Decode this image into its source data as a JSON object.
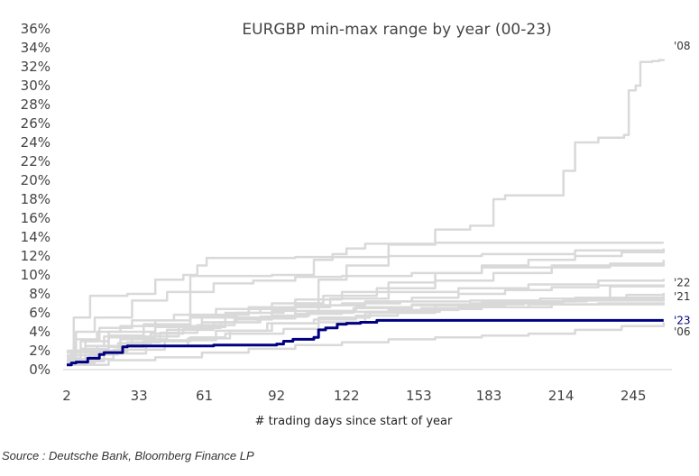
{
  "chart_data": {
    "type": "line",
    "title": "EURGBP min-max range by year (00-23)",
    "xlabel": "# trading days since start of year",
    "ylabel": "",
    "xlim": [
      2,
      260
    ],
    "ylim": [
      0,
      36
    ],
    "x_ticks": [
      2,
      33,
      61,
      92,
      122,
      153,
      183,
      214,
      245
    ],
    "y_ticks": [
      "0%",
      "2%",
      "4%",
      "6%",
      "8%",
      "10%",
      "12%",
      "14%",
      "16%",
      "18%",
      "20%",
      "22%",
      "24%",
      "26%",
      "28%",
      "30%",
      "32%",
      "34%",
      "36%"
    ],
    "y_tick_values": [
      0,
      2,
      4,
      6,
      8,
      10,
      12,
      14,
      16,
      18,
      20,
      22,
      24,
      26,
      28,
      30,
      32,
      34,
      36
    ],
    "colors": {
      "background_series": "#d9d9d9",
      "highlight": "#000080"
    },
    "series": [
      {
        "name": "'08",
        "label_y": 34.2,
        "highlight": false,
        "x": [
          2,
          4,
          10,
          20,
          40,
          60,
          75,
          100,
          110,
          122,
          140,
          155,
          160,
          175,
          185,
          190,
          195,
          205,
          215,
          220,
          230,
          238,
          241,
          243,
          246,
          248,
          253,
          256,
          258
        ],
        "y": [
          1.0,
          2.0,
          3.0,
          4.0,
          4.5,
          5.0,
          5.5,
          7.0,
          9.5,
          11.0,
          13.2,
          13.2,
          14.8,
          15.2,
          18.0,
          18.4,
          18.4,
          18.4,
          21.0,
          24.0,
          24.5,
          24.5,
          24.8,
          29.5,
          30.0,
          32.5,
          32.6,
          32.7,
          32.8
        ]
      },
      {
        "name": "'22",
        "label_y": 9.2,
        "highlight": false,
        "x": [
          2,
          10,
          20,
          35,
          55,
          70,
          95,
          110,
          130,
          160,
          190,
          215,
          235,
          258
        ],
        "y": [
          1.0,
          1.8,
          2.4,
          3.0,
          3.4,
          3.8,
          4.3,
          5.0,
          6.0,
          6.8,
          7.2,
          7.5,
          8.8,
          9.0
        ]
      },
      {
        "name": "'21",
        "label_y": 7.7,
        "highlight": false,
        "x": [
          2,
          8,
          15,
          25,
          40,
          55,
          70,
          85,
          100,
          120,
          145,
          175,
          205,
          240,
          258
        ],
        "y": [
          1.2,
          3.0,
          4.0,
          4.6,
          5.2,
          5.5,
          6.0,
          6.4,
          6.8,
          7.0,
          7.2,
          7.3,
          7.5,
          7.6,
          7.6
        ]
      },
      {
        "name": "'23",
        "label_y": 5.2,
        "highlight": true,
        "x": [
          2,
          4,
          6,
          9,
          11,
          13,
          16,
          18,
          20,
          24,
          26,
          28,
          40,
          58,
          65,
          72,
          88,
          92,
          95,
          99,
          102,
          108,
          110,
          113,
          118,
          122,
          128,
          135,
          160,
          200,
          258
        ],
        "y": [
          0.5,
          0.7,
          0.8,
          0.8,
          1.2,
          1.2,
          1.6,
          1.8,
          1.8,
          1.8,
          2.4,
          2.5,
          2.5,
          2.5,
          2.6,
          2.6,
          2.6,
          2.7,
          3.0,
          3.2,
          3.2,
          3.4,
          4.2,
          4.4,
          4.8,
          4.9,
          5.0,
          5.2,
          5.2,
          5.2,
          5.2
        ]
      },
      {
        "name": "'06",
        "label_y": 4.0,
        "highlight": false,
        "x": [
          2,
          20,
          40,
          60,
          80,
          100,
          120,
          140,
          160,
          180,
          200,
          220,
          240,
          258
        ],
        "y": [
          0.5,
          1.0,
          1.3,
          1.8,
          2.2,
          2.6,
          2.9,
          3.2,
          3.4,
          3.6,
          3.8,
          4.2,
          4.6,
          5.0
        ]
      },
      {
        "name": "",
        "highlight": false,
        "x": [
          2,
          6,
          14,
          30,
          45,
          65,
          82,
          100,
          120,
          150,
          180,
          210,
          258
        ],
        "y": [
          1.0,
          4.0,
          5.5,
          7.3,
          8.2,
          9.1,
          9.4,
          9.8,
          9.9,
          10.2,
          10.8,
          11.0,
          11.4
        ]
      },
      {
        "name": "",
        "highlight": false,
        "x": [
          2,
          10,
          18,
          40,
          55,
          90,
          108,
          116,
          122,
          130,
          160,
          258
        ],
        "y": [
          2.0,
          2.5,
          3.5,
          4.6,
          9.9,
          10.0,
          11.6,
          12.2,
          12.8,
          13.3,
          13.4,
          13.4
        ]
      },
      {
        "name": "",
        "highlight": false,
        "x": [
          2,
          5,
          12,
          20,
          28,
          40,
          52,
          58,
          62,
          100,
          140,
          180,
          220,
          258
        ],
        "y": [
          1.2,
          5.5,
          7.8,
          7.8,
          8.0,
          9.5,
          10.0,
          11.0,
          11.8,
          11.9,
          12.0,
          12.2,
          12.6,
          12.8
        ]
      },
      {
        "name": "",
        "highlight": false,
        "x": [
          2,
          15,
          30,
          50,
          70,
          90,
          110,
          130,
          150,
          170,
          190,
          210,
          230,
          258
        ],
        "y": [
          1.5,
          2.5,
          3.5,
          4.5,
          5.5,
          6.2,
          6.8,
          7.2,
          7.6,
          8.0,
          8.4,
          8.7,
          8.9,
          9.0
        ]
      },
      {
        "name": "",
        "highlight": false,
        "x": [
          2,
          10,
          25,
          45,
          65,
          85,
          105,
          125,
          150,
          175,
          200,
          225,
          258
        ],
        "y": [
          0.8,
          2.0,
          3.2,
          4.2,
          5.0,
          5.6,
          6.0,
          6.5,
          6.8,
          7.0,
          7.2,
          7.5,
          7.8
        ]
      },
      {
        "name": "",
        "highlight": false,
        "x": [
          2,
          8,
          20,
          35,
          55,
          75,
          95,
          115,
          140,
          170,
          200,
          230,
          258
        ],
        "y": [
          1.0,
          2.2,
          3.6,
          4.8,
          5.6,
          6.0,
          6.6,
          7.5,
          8.2,
          8.6,
          9.0,
          9.4,
          9.6
        ]
      },
      {
        "name": "",
        "highlight": false,
        "x": [
          2,
          12,
          24,
          38,
          52,
          68,
          84,
          100,
          120,
          140,
          170,
          210,
          258
        ],
        "y": [
          0.6,
          1.6,
          2.8,
          3.8,
          4.4,
          5.0,
          5.4,
          5.9,
          6.1,
          6.3,
          6.6,
          6.9,
          7.1
        ]
      },
      {
        "name": "",
        "highlight": false,
        "x": [
          2,
          6,
          16,
          30,
          48,
          66,
          90,
          112,
          135,
          160,
          185,
          210,
          235,
          258
        ],
        "y": [
          1.4,
          3.2,
          4.4,
          5.2,
          5.8,
          6.4,
          7.0,
          7.8,
          8.6,
          9.4,
          10.2,
          10.8,
          11.2,
          11.6
        ]
      },
      {
        "name": "",
        "highlight": false,
        "x": [
          2,
          14,
          28,
          42,
          58,
          74,
          90,
          106,
          126,
          150,
          180,
          215,
          258
        ],
        "y": [
          0.7,
          1.9,
          2.9,
          3.9,
          4.7,
          5.3,
          5.7,
          6.2,
          6.6,
          6.9,
          7.1,
          7.3,
          7.4
        ]
      },
      {
        "name": "",
        "highlight": false,
        "x": [
          2,
          20,
          40,
          60,
          80,
          100,
          120,
          140,
          160,
          180,
          200,
          220,
          240,
          258
        ],
        "y": [
          1.8,
          3.4,
          4.6,
          5.8,
          6.6,
          7.4,
          8.2,
          9.2,
          10.2,
          11.0,
          11.6,
          12.0,
          12.4,
          12.6
        ]
      },
      {
        "name": "",
        "highlight": false,
        "x": [
          2,
          18,
          36,
          54,
          72,
          90,
          108,
          126,
          144,
          162,
          180,
          200,
          230,
          258
        ],
        "y": [
          0.9,
          1.7,
          2.5,
          3.3,
          4.1,
          4.9,
          5.3,
          5.7,
          6.1,
          6.4,
          6.6,
          6.9,
          7.0,
          7.1
        ]
      },
      {
        "name": "",
        "highlight": false,
        "x": [
          2,
          22,
          44,
          66,
          88,
          110,
          132,
          154,
          176,
          198,
          220,
          242,
          258
        ],
        "y": [
          1.1,
          2.1,
          3.1,
          4.1,
          4.9,
          5.5,
          6.1,
          6.5,
          6.9,
          7.2,
          7.6,
          7.9,
          8.1
        ]
      }
    ]
  },
  "source": "Source : Deutsche Bank, Bloomberg Finance LP"
}
